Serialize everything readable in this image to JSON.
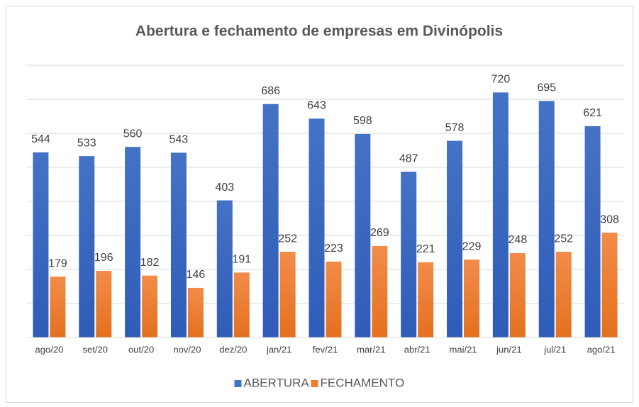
{
  "chart_data": {
    "type": "bar",
    "title": "Abertura e fechamento de empresas em Divinópolis",
    "categories": [
      "ago/20",
      "set/20",
      "out/20",
      "nov/20",
      "dez/20",
      "jan/21",
      "fev/21",
      "mar/21",
      "abr/21",
      "mai/21",
      "jun/21",
      "jul/21",
      "ago/21"
    ],
    "series": [
      {
        "name": "ABERTURA",
        "color": "#4472c4",
        "values": [
          544,
          533,
          560,
          543,
          403,
          686,
          643,
          598,
          487,
          578,
          720,
          695,
          621
        ]
      },
      {
        "name": "FECHAMENTO",
        "color": "#ed7d31",
        "values": [
          179,
          196,
          182,
          146,
          191,
          252,
          223,
          269,
          221,
          229,
          248,
          252,
          308
        ]
      }
    ],
    "ylim": [
      0,
      800
    ],
    "yticks": [
      0,
      100,
      200,
      300,
      400,
      500,
      600,
      700,
      800
    ],
    "grid": true,
    "legend": "bottom"
  }
}
